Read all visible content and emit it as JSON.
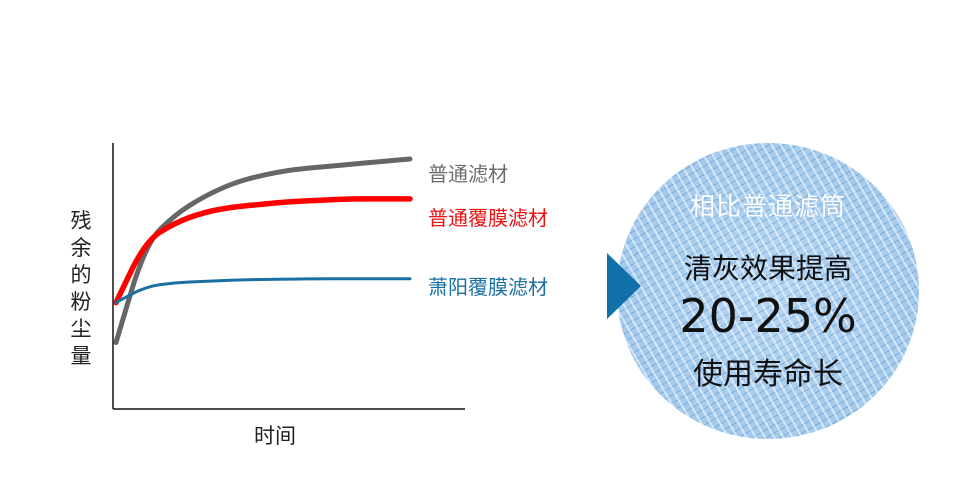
{
  "chart_data": {
    "type": "line",
    "title": "",
    "xlabel": "时间",
    "ylabel": "残余的粉尘量",
    "grid": false,
    "legend_position": "right, inline at line ends",
    "x": [
      0,
      0.1,
      0.2,
      0.3,
      0.4,
      0.5,
      0.6,
      0.7,
      0.8,
      0.9,
      1.0
    ],
    "series": [
      {
        "name": "普通滤材",
        "color": "#666666",
        "values": [
          0.25,
          0.62,
          0.73,
          0.8,
          0.85,
          0.88,
          0.9,
          0.91,
          0.92,
          0.93,
          0.94
        ]
      },
      {
        "name": "普通覆膜滤材",
        "color": "#ff0000",
        "values": [
          0.4,
          0.63,
          0.7,
          0.74,
          0.76,
          0.77,
          0.78,
          0.785,
          0.79,
          0.79,
          0.79
        ]
      },
      {
        "name": "萧阳覆膜滤材",
        "color": "#1a6fa3",
        "values": [
          0.4,
          0.46,
          0.475,
          0.48,
          0.485,
          0.487,
          0.488,
          0.49,
          0.49,
          0.49,
          0.49
        ]
      }
    ]
  },
  "legend": {
    "gray": "普通滤材",
    "red": "普通覆膜滤材",
    "blue": "萧阳覆膜滤材"
  },
  "axis": {
    "ylabel_chars": [
      "残",
      "余",
      "的",
      "粉",
      "尘",
      "量"
    ],
    "xlabel": "时间"
  },
  "callout": {
    "line1": "相比普通滤筒",
    "line2": "清灰效果提高",
    "line3": "20-25%",
    "line4": "使用寿命长",
    "arrow_color": "#1070aa",
    "circle_color": "#a9cdee"
  }
}
